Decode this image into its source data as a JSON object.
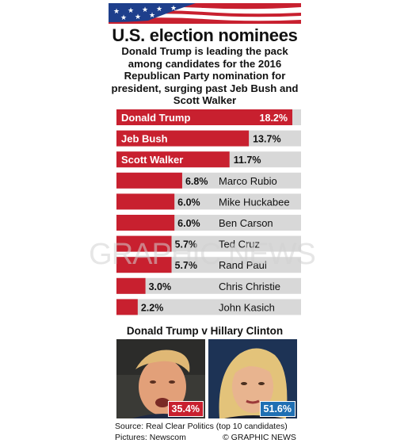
{
  "title": "U.S. election nominees",
  "subtitle": "Donald Trump is leading the pack among candidates for the 2016 Republican Party nomination for president, surging past Jeb Bush and Scott Walker",
  "colors": {
    "bar": "#c8202f",
    "track": "#d8d8d8",
    "trump_badge": "#c8202f",
    "clinton_badge": "#1f6fb3",
    "flag_blue": "#1e3f8c",
    "flag_red": "#c8202f"
  },
  "chart_data": {
    "type": "bar",
    "orientation": "horizontal",
    "categories": [
      "Donald Trump",
      "Jeb Bush",
      "Scott Walker",
      "Marco Rubio",
      "Mike Huckabee",
      "Ben Carson",
      "Ted Cruz",
      "Rand Paul",
      "Chris Christie",
      "John Kasich"
    ],
    "values": [
      18.2,
      13.7,
      11.7,
      6.8,
      6.0,
      6.0,
      5.7,
      5.7,
      3.0,
      2.2
    ],
    "value_labels": [
      "18.2%",
      "13.7%",
      "11.7%",
      "6.8%",
      "6.0%",
      "6.0%",
      "5.7%",
      "5.7%",
      "3.0%",
      "2.2%"
    ],
    "xlim": [
      0,
      20
    ],
    "grid": false
  },
  "head_to_head": {
    "title": "Donald Trump v Hillary Clinton",
    "trump_value": "35.4%",
    "clinton_value": "51.6%"
  },
  "source": "Source: Real Clear Politics (top 10 candidates)",
  "pictures": "Pictures: Newscom",
  "credit": "© GRAPHIC NEWS",
  "watermark": "GRAPHIC NEWS"
}
